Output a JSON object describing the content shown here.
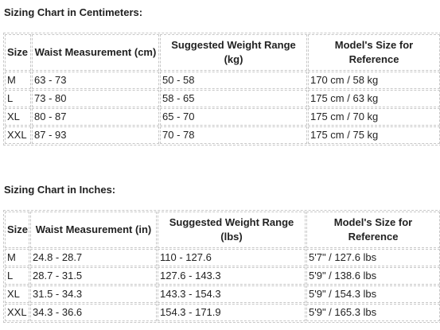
{
  "tables": [
    {
      "title": "Sizing Chart in Centimeters:",
      "headers": [
        "Size",
        "Waist Measurement (cm)",
        "Suggested Weight Range (kg)",
        "Model's Size for Reference"
      ],
      "rows": [
        [
          "M",
          "63 - 73",
          "50 - 58",
          "170 cm / 58 kg"
        ],
        [
          "L",
          "73 - 80",
          "58 - 65",
          "175 cm / 63 kg"
        ],
        [
          "XL",
          "80 - 87",
          "65 - 70",
          "175 cm / 70 kg"
        ],
        [
          "XXL",
          "87 - 93",
          "70 - 78",
          "175 cm / 75 kg"
        ]
      ]
    },
    {
      "title": "Sizing Chart in Inches:",
      "headers": [
        "Size",
        "Waist Measurement (in)",
        "Suggested Weight Range (lbs)",
        "Model's Size for Reference"
      ],
      "rows": [
        [
          "M",
          "24.8 - 28.7",
          "110 - 127.6",
          "5'7\" / 127.6 lbs"
        ],
        [
          "L",
          "28.7 - 31.5",
          "127.6 - 143.3",
          "5'9\" / 138.6 lbs"
        ],
        [
          "XL",
          "31.5 - 34.3",
          "143.3 - 154.3",
          "5'9\" / 154.3 lbs"
        ],
        [
          "XXL",
          "34.3 - 36.6",
          "154.3 - 171.9",
          "5'9\" / 165.3 lbs"
        ]
      ]
    }
  ]
}
